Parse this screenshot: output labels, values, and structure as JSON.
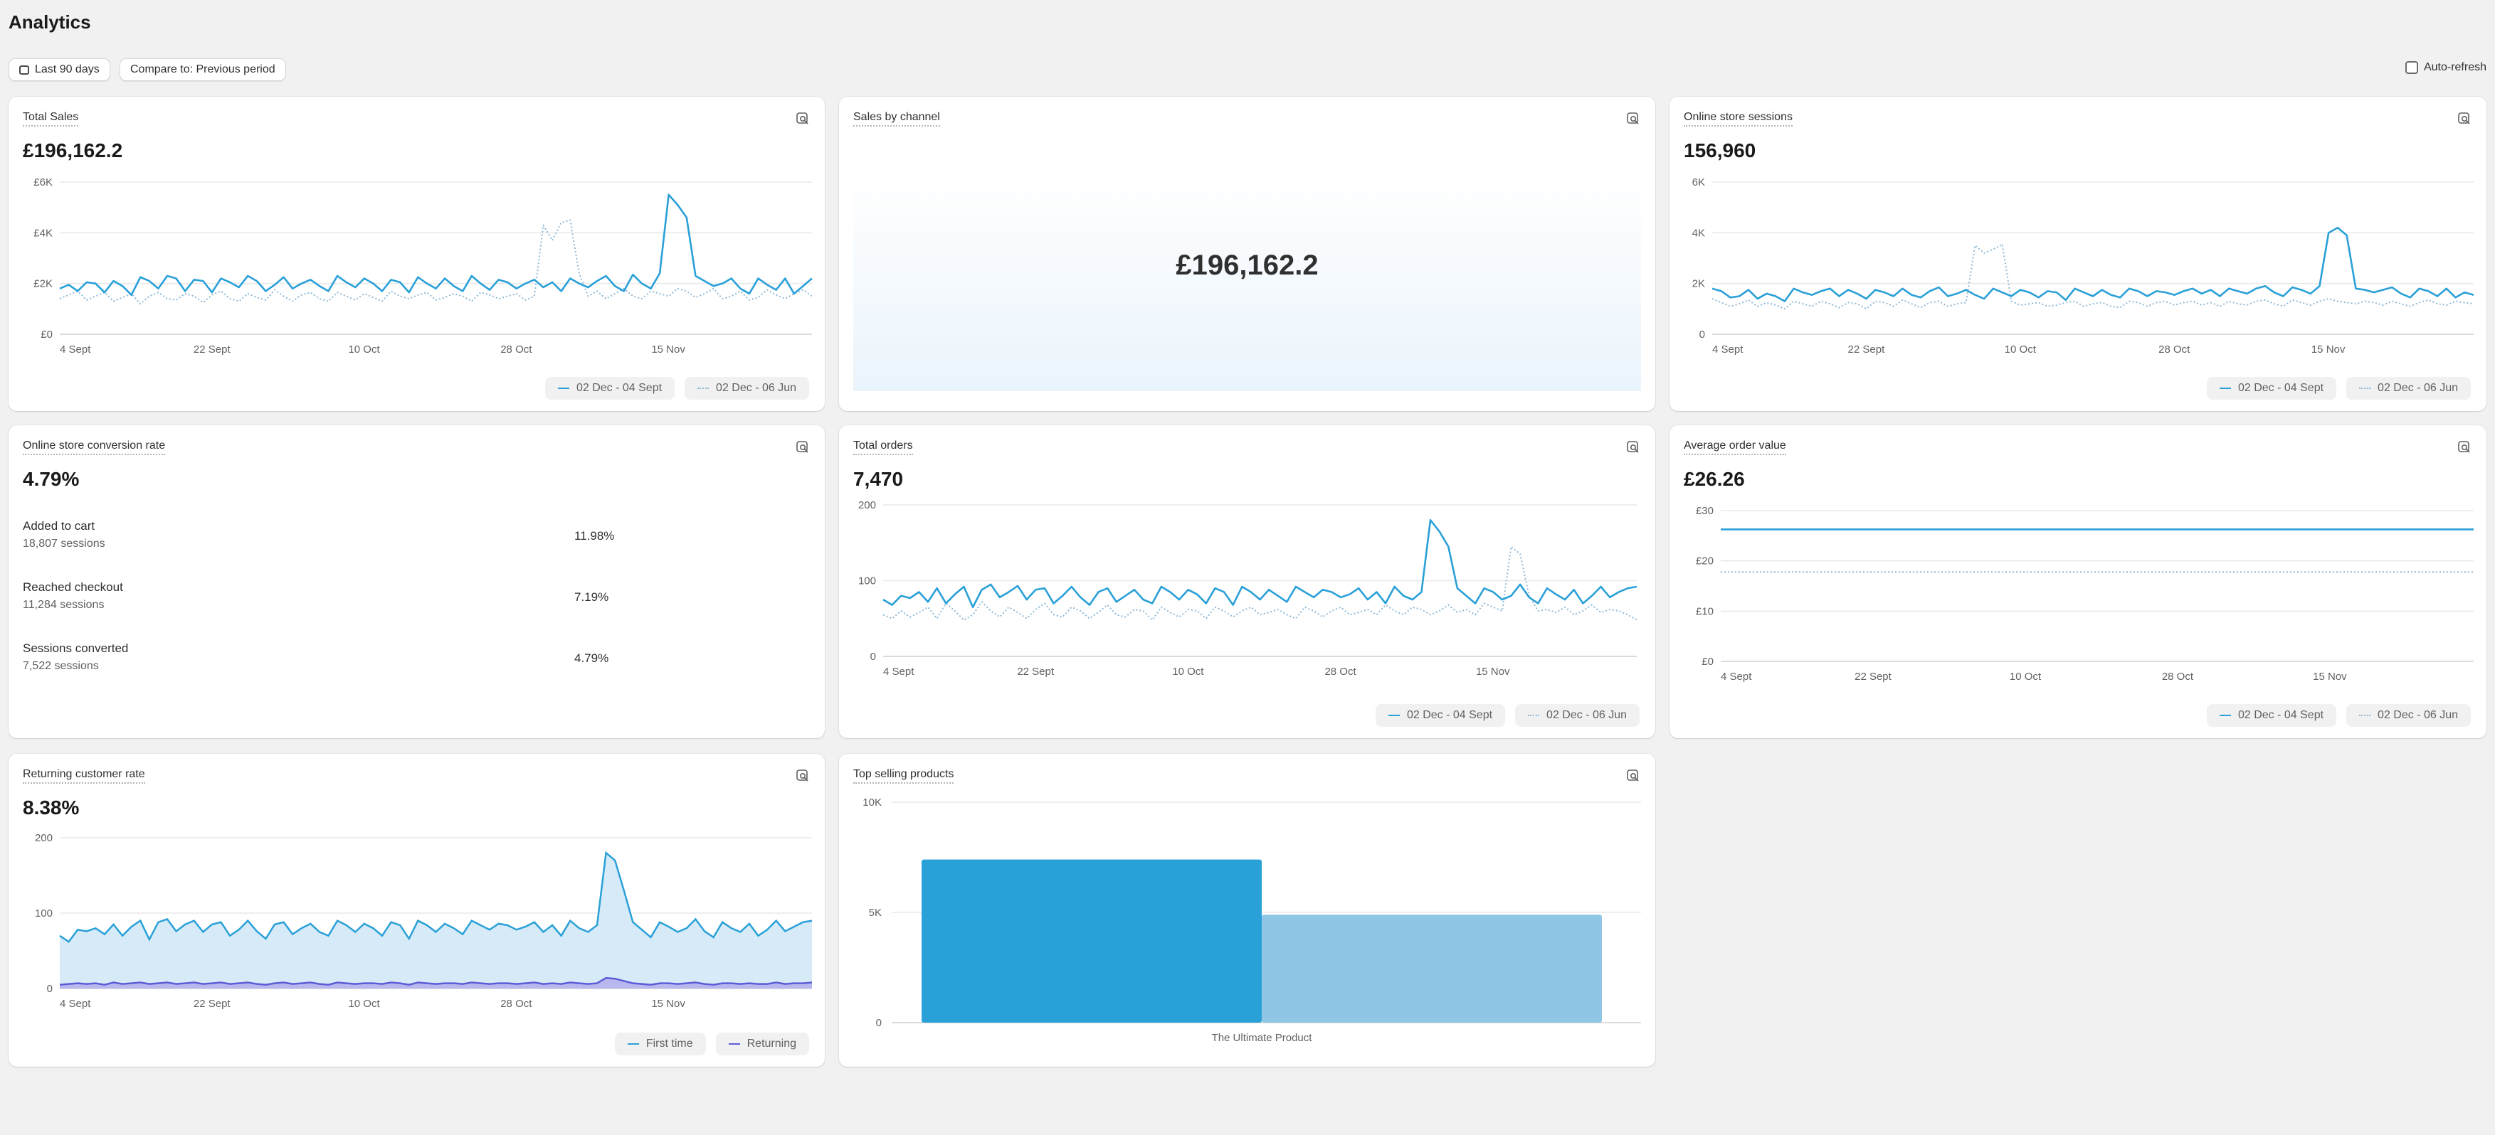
{
  "page": {
    "title": "Analytics"
  },
  "toolbar": {
    "date_range": "Last 90 days",
    "compare": "Compare to: Previous period",
    "auto_refresh": "Auto-refresh"
  },
  "colors": {
    "primary": "#2aa0d8",
    "compare": "#8fb9d6",
    "returning": "#5e5bd8",
    "area": "#d6ebf7",
    "bar_light": "#8fc5e5"
  },
  "cards": {
    "total_sales": {
      "title": "Total Sales",
      "value": "£196,162.2",
      "legend": [
        "02 Dec - 04 Sept",
        "02 Dec - 06 Jun"
      ],
      "chart_data": {
        "type": "line",
        "x_ticks": [
          "4 Sept",
          "22 Sept",
          "10 Oct",
          "28 Oct",
          "15 Nov"
        ],
        "y_ticks": [
          "£0",
          "£2K",
          "£4K",
          "£6K"
        ],
        "ylim": [
          0,
          6000
        ],
        "series": [
          {
            "name": "02 Dec - 04 Sept",
            "style": "solid",
            "values": [
              1800,
              1950,
              1700,
              2050,
              2000,
              1650,
              2100,
              1900,
              1550,
              2250,
              2100,
              1800,
              2300,
              2200,
              1700,
              2150,
              2100,
              1650,
              2200,
              2050,
              1850,
              2300,
              2100,
              1700,
              1950,
              2250,
              1800,
              2000,
              2150,
              1900,
              1700,
              2300,
              2050,
              1850,
              2200,
              2000,
              1700,
              2150,
              2050,
              1650,
              2250,
              2000,
              1800,
              2200,
              1900,
              1700,
              2300,
              2000,
              1750,
              2150,
              2050,
              1800,
              2000,
              2150,
              1850,
              2050,
              1700,
              2200,
              2000,
              1850,
              2100,
              2300,
              1900,
              1700,
              2350,
              2000,
              1800,
              2400,
              5500,
              5100,
              4600,
              2300,
              2100,
              1900,
              2000,
              2200,
              1800,
              1600,
              2200,
              1950,
              1750,
              2200,
              1600,
              1900,
              2200
            ]
          },
          {
            "name": "02 Dec - 06 Jun",
            "style": "dotted",
            "values": [
              1400,
              1550,
              1700,
              1350,
              1500,
              1650,
              1300,
              1450,
              1600,
              1200,
              1500,
              1650,
              1400,
              1350,
              1600,
              1500,
              1250,
              1550,
              1700,
              1400,
              1300,
              1600,
              1450,
              1350,
              1750,
              1500,
              1300,
              1550,
              1650,
              1400,
              1300,
              1650,
              1500,
              1350,
              1600,
              1450,
              1300,
              1700,
              1500,
              1400,
              1550,
              1650,
              1350,
              1450,
              1600,
              1500,
              1300,
              1650,
              1550,
              1400,
              1500,
              1600,
              1350,
              1500,
              4300,
              3700,
              4400,
              4500,
              2400,
              1500,
              1700,
              1400,
              1600,
              1800,
              1500,
              1400,
              1700,
              1600,
              1500,
              1800,
              1700,
              1450,
              1600,
              1800,
              1400,
              1500,
              1700,
              1350,
              1450,
              1750,
              1550,
              1400,
              1600,
              1750,
              1500
            ]
          }
        ]
      }
    },
    "sales_by_channel": {
      "title": "Sales by channel",
      "value": "£196,162.2"
    },
    "online_store_sessions": {
      "title": "Online store sessions",
      "value": "156,960",
      "legend": [
        "02 Dec - 04 Sept",
        "02 Dec - 06 Jun"
      ],
      "chart_data": {
        "type": "line",
        "x_ticks": [
          "4 Sept",
          "22 Sept",
          "10 Oct",
          "28 Oct",
          "15 Nov"
        ],
        "y_ticks": [
          "0",
          "2K",
          "4K",
          "6K"
        ],
        "ylim": [
          0,
          6000
        ],
        "series": [
          {
            "name": "02 Dec - 04 Sept",
            "style": "solid",
            "values": [
              1800,
              1700,
              1450,
              1500,
              1750,
              1400,
              1600,
              1500,
              1300,
              1800,
              1650,
              1550,
              1700,
              1800,
              1500,
              1750,
              1600,
              1400,
              1750,
              1650,
              1500,
              1800,
              1550,
              1450,
              1700,
              1850,
              1500,
              1600,
              1750,
              1550,
              1400,
              1800,
              1650,
              1500,
              1750,
              1650,
              1450,
              1700,
              1650,
              1350,
              1800,
              1650,
              1500,
              1750,
              1550,
              1450,
              1800,
              1700,
              1500,
              1700,
              1650,
              1550,
              1700,
              1800,
              1600,
              1750,
              1500,
              1800,
              1700,
              1600,
              1800,
              1900,
              1650,
              1500,
              1850,
              1750,
              1600,
              1900,
              4000,
              4200,
              3900,
              1800,
              1750,
              1650,
              1750,
              1850,
              1600,
              1450,
              1800,
              1700,
              1500,
              1800,
              1450,
              1650,
              1550
            ]
          },
          {
            "name": "02 Dec - 06 Jun",
            "style": "dotted",
            "values": [
              1400,
              1250,
              1100,
              1200,
              1350,
              1100,
              1250,
              1150,
              1000,
              1300,
              1200,
              1100,
              1300,
              1200,
              1050,
              1250,
              1200,
              1000,
              1300,
              1250,
              1100,
              1350,
              1200,
              1050,
              1250,
              1300,
              1100,
              1200,
              1250,
              3500,
              3200,
              3350,
              3550,
              1300,
              1150,
              1200,
              1250,
              1100,
              1150,
              1250,
              1300,
              1100,
              1200,
              1250,
              1100,
              1050,
              1300,
              1250,
              1100,
              1250,
              1300,
              1150,
              1250,
              1300,
              1150,
              1250,
              1100,
              1300,
              1200,
              1150,
              1300,
              1350,
              1200,
              1100,
              1350,
              1250,
              1150,
              1300,
              1400,
              1300,
              1250,
              1200,
              1300,
              1250,
              1150,
              1300,
              1200,
              1100,
              1250,
              1350,
              1200,
              1150,
              1300,
              1250,
              1200
            ]
          }
        ]
      }
    },
    "conversion_rate": {
      "title": "Online store conversion rate",
      "value": "4.79%",
      "rows": [
        {
          "label": "Added to cart",
          "sub": "18,807 sessions",
          "pct": "11.98%"
        },
        {
          "label": "Reached checkout",
          "sub": "11,284 sessions",
          "pct": "7.19%"
        },
        {
          "label": "Sessions converted",
          "sub": "7,522 sessions",
          "pct": "4.79%"
        }
      ]
    },
    "total_orders": {
      "title": "Total orders",
      "value": "7,470",
      "legend": [
        "02 Dec - 04 Sept",
        "02 Dec - 06 Jun"
      ],
      "chart_data": {
        "type": "line",
        "x_ticks": [
          "4 Sept",
          "22 Sept",
          "10 Oct",
          "28 Oct",
          "15 Nov"
        ],
        "y_ticks": [
          "0",
          "100",
          "200"
        ],
        "ylim": [
          0,
          200
        ],
        "series": [
          {
            "name": "02 Dec - 04 Sept",
            "style": "solid",
            "values": [
              75,
              68,
              80,
              77,
              85,
              72,
              90,
              70,
              82,
              92,
              65,
              88,
              95,
              78,
              85,
              93,
              75,
              88,
              90,
              70,
              80,
              92,
              78,
              68,
              85,
              90,
              72,
              80,
              88,
              75,
              70,
              92,
              85,
              75,
              88,
              82,
              70,
              90,
              85,
              68,
              92,
              85,
              75,
              88,
              80,
              72,
              92,
              85,
              78,
              88,
              85,
              78,
              82,
              90,
              75,
              85,
              70,
              92,
              80,
              75,
              85,
              180,
              165,
              145,
              90,
              80,
              70,
              90,
              85,
              75,
              80,
              95,
              78,
              70,
              90,
              82,
              75,
              88,
              70,
              80,
              92,
              78,
              85,
              90,
              92
            ]
          },
          {
            "name": "02 Dec - 06 Jun",
            "style": "dotted",
            "values": [
              55,
              50,
              60,
              52,
              58,
              65,
              50,
              70,
              60,
              48,
              55,
              72,
              60,
              52,
              65,
              58,
              50,
              62,
              70,
              55,
              52,
              65,
              60,
              50,
              58,
              68,
              55,
              52,
              62,
              60,
              48,
              65,
              58,
              52,
              62,
              60,
              50,
              65,
              60,
              52,
              60,
              65,
              55,
              58,
              62,
              55,
              50,
              65,
              60,
              52,
              60,
              65,
              55,
              58,
              62,
              55,
              68,
              60,
              55,
              65,
              62,
              55,
              60,
              68,
              58,
              62,
              55,
              70,
              65,
              60,
              145,
              135,
              80,
              60,
              62,
              58,
              65,
              55,
              60,
              68,
              58,
              62,
              60,
              55,
              48
            ]
          }
        ]
      }
    },
    "average_order_value": {
      "title": "Average order value",
      "value": "£26.26",
      "legend": [
        "02 Dec - 04 Sept",
        "02 Dec - 06 Jun"
      ],
      "chart_data": {
        "type": "line",
        "x_ticks": [
          "4 Sept",
          "22 Sept",
          "10 Oct",
          "28 Oct",
          "15 Nov"
        ],
        "y_ticks": [
          "£0",
          "£10",
          "£20",
          "£30"
        ],
        "ylim": [
          0,
          30
        ],
        "series": [
          {
            "name": "02 Dec - 04 Sept",
            "style": "solid",
            "values": [
              26.26,
              26.26
            ]
          },
          {
            "name": "02 Dec - 06 Jun",
            "style": "dotted",
            "values": [
              17.8,
              17.8
            ]
          }
        ]
      }
    },
    "returning_customer_rate": {
      "title": "Returning customer rate",
      "value": "8.38%",
      "legend": [
        "First time",
        "Returning"
      ],
      "chart_data": {
        "type": "area",
        "x_ticks": [
          "4 Sept",
          "22 Sept",
          "10 Oct",
          "28 Oct",
          "15 Nov"
        ],
        "y_ticks": [
          "0",
          "100",
          "200"
        ],
        "ylim": [
          0,
          200
        ],
        "series": [
          {
            "name": "First time",
            "values": [
              70,
              62,
              78,
              76,
              80,
              72,
              85,
              70,
              82,
              90,
              65,
              88,
              92,
              76,
              85,
              90,
              75,
              85,
              88,
              70,
              78,
              90,
              76,
              66,
              85,
              88,
              72,
              80,
              86,
              75,
              70,
              90,
              84,
              75,
              86,
              80,
              70,
              88,
              84,
              66,
              90,
              84,
              75,
              86,
              80,
              72,
              90,
              84,
              78,
              86,
              84,
              78,
              82,
              88,
              75,
              84,
              70,
              90,
              80,
              75,
              84,
              180,
              170,
              130,
              88,
              78,
              68,
              88,
              82,
              75,
              80,
              92,
              76,
              68,
              88,
              80,
              75,
              86,
              70,
              78,
              90,
              76,
              82,
              88,
              90
            ]
          },
          {
            "name": "Returning",
            "values": [
              5,
              6,
              7,
              6,
              7,
              5,
              8,
              6,
              7,
              8,
              6,
              7,
              8,
              6,
              7,
              8,
              6,
              7,
              8,
              6,
              7,
              8,
              6,
              5,
              7,
              8,
              6,
              7,
              8,
              6,
              5,
              8,
              7,
              6,
              7,
              7,
              6,
              8,
              7,
              5,
              8,
              7,
              6,
              7,
              7,
              6,
              8,
              7,
              6,
              7,
              7,
              6,
              7,
              8,
              6,
              7,
              6,
              8,
              7,
              6,
              7,
              14,
              13,
              10,
              7,
              6,
              5,
              7,
              7,
              6,
              7,
              8,
              6,
              5,
              7,
              7,
              6,
              7,
              6,
              6,
              8,
              6,
              7,
              7,
              8
            ]
          }
        ]
      }
    },
    "top_selling_products": {
      "title": "Top selling products",
      "chart_data": {
        "type": "bar",
        "categories": [
          "The Ultimate Product"
        ],
        "y_ticks": [
          "0",
          "5K",
          "10K"
        ],
        "ylim": [
          0,
          10000
        ],
        "series": [
          {
            "values": [
              7400
            ]
          },
          {
            "values": [
              4900
            ]
          }
        ]
      }
    }
  }
}
